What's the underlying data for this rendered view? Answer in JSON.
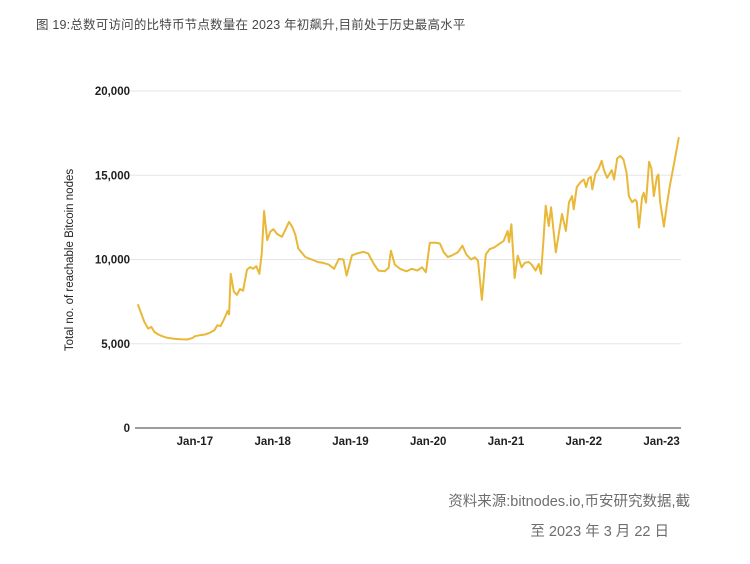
{
  "figure": {
    "title": "图 19:总数可访问的比特币节点数量在 2023 年初飙升,目前处于历史最高水平"
  },
  "source": {
    "line1": "资料来源:bitnodes.io,币安研究数据,截",
    "line2": "至 2023 年 3 月 22 日"
  },
  "chart_data": {
    "type": "line",
    "title": "",
    "xlabel": "",
    "ylabel": "Total no. of reachable Bitcoin nodes",
    "ylim": [
      0,
      20000
    ],
    "xlim": [
      2016.23,
      2023.25
    ],
    "grid": true,
    "legend_position": "none",
    "yticks": [
      0,
      5000,
      10000,
      15000,
      20000
    ],
    "ytick_labels": [
      "0",
      "5,000",
      "10,000",
      "15,000",
      "20,000"
    ],
    "xtick_positions": [
      2017,
      2018,
      2019,
      2020,
      2021,
      2022,
      2023
    ],
    "xtick_labels": [
      "Jan-17",
      "Jan-18",
      "Jan-19",
      "Jan-20",
      "Jan-21",
      "Jan-22",
      "Jan-23"
    ],
    "colors": {
      "line": "#E9B838",
      "grid": "#E5E5E5",
      "axis": "#9C9C9C",
      "tick_text": "#1F1F1F",
      "axis_title_text": "#222222"
    },
    "series": [
      {
        "name": "Total no. of reachable Bitcoin nodes",
        "points": [
          [
            2016.27,
            7300
          ],
          [
            2016.31,
            6800
          ],
          [
            2016.35,
            6300
          ],
          [
            2016.4,
            5900
          ],
          [
            2016.44,
            6000
          ],
          [
            2016.48,
            5700
          ],
          [
            2016.53,
            5550
          ],
          [
            2016.58,
            5450
          ],
          [
            2016.65,
            5350
          ],
          [
            2016.73,
            5300
          ],
          [
            2016.81,
            5270
          ],
          [
            2016.9,
            5250
          ],
          [
            2016.97,
            5350
          ],
          [
            2017.0,
            5450
          ],
          [
            2017.06,
            5500
          ],
          [
            2017.13,
            5550
          ],
          [
            2017.19,
            5650
          ],
          [
            2017.25,
            5800
          ],
          [
            2017.29,
            6100
          ],
          [
            2017.33,
            6050
          ],
          [
            2017.38,
            6500
          ],
          [
            2017.42,
            6950
          ],
          [
            2017.44,
            6750
          ],
          [
            2017.46,
            9150
          ],
          [
            2017.5,
            8100
          ],
          [
            2017.54,
            7900
          ],
          [
            2017.58,
            8250
          ],
          [
            2017.62,
            8150
          ],
          [
            2017.67,
            9400
          ],
          [
            2017.71,
            9550
          ],
          [
            2017.75,
            9450
          ],
          [
            2017.79,
            9600
          ],
          [
            2017.83,
            9150
          ],
          [
            2017.86,
            10400
          ],
          [
            2017.89,
            12880
          ],
          [
            2017.93,
            11150
          ],
          [
            2017.97,
            11650
          ],
          [
            2018.01,
            11800
          ],
          [
            2018.06,
            11500
          ],
          [
            2018.12,
            11350
          ],
          [
            2018.21,
            12230
          ],
          [
            2018.25,
            11950
          ],
          [
            2018.29,
            11500
          ],
          [
            2018.33,
            10650
          ],
          [
            2018.42,
            10150
          ],
          [
            2018.5,
            10000
          ],
          [
            2018.58,
            9850
          ],
          [
            2018.65,
            9800
          ],
          [
            2018.72,
            9700
          ],
          [
            2018.79,
            9450
          ],
          [
            2018.85,
            10030
          ],
          [
            2018.91,
            10000
          ],
          [
            2018.95,
            9045
          ],
          [
            2019.02,
            10250
          ],
          [
            2019.1,
            10380
          ],
          [
            2019.17,
            10450
          ],
          [
            2019.23,
            10350
          ],
          [
            2019.3,
            9735
          ],
          [
            2019.36,
            9340
          ],
          [
            2019.44,
            9300
          ],
          [
            2019.49,
            9500
          ],
          [
            2019.52,
            10520
          ],
          [
            2019.57,
            9700
          ],
          [
            2019.64,
            9440
          ],
          [
            2019.72,
            9300
          ],
          [
            2019.79,
            9450
          ],
          [
            2019.86,
            9350
          ],
          [
            2019.92,
            9540
          ],
          [
            2019.97,
            9245
          ],
          [
            2020.02,
            10985
          ],
          [
            2020.08,
            11000
          ],
          [
            2020.15,
            10950
          ],
          [
            2020.2,
            10425
          ],
          [
            2020.25,
            10150
          ],
          [
            2020.31,
            10250
          ],
          [
            2020.38,
            10430
          ],
          [
            2020.44,
            10820
          ],
          [
            2020.49,
            10300
          ],
          [
            2020.55,
            10000
          ],
          [
            2020.6,
            10130
          ],
          [
            2020.64,
            9930
          ],
          [
            2020.69,
            7600
          ],
          [
            2020.74,
            10300
          ],
          [
            2020.79,
            10620
          ],
          [
            2020.85,
            10720
          ],
          [
            2020.91,
            10915
          ],
          [
            2020.97,
            11110
          ],
          [
            2021.02,
            11700
          ],
          [
            2021.04,
            11030
          ],
          [
            2021.07,
            12095
          ],
          [
            2021.11,
            8900
          ],
          [
            2021.15,
            10230
          ],
          [
            2021.2,
            9540
          ],
          [
            2021.24,
            9800
          ],
          [
            2021.29,
            9850
          ],
          [
            2021.33,
            9700
          ],
          [
            2021.38,
            9340
          ],
          [
            2021.42,
            9730
          ],
          [
            2021.45,
            9150
          ],
          [
            2021.48,
            11000
          ],
          [
            2021.51,
            13200
          ],
          [
            2021.55,
            11990
          ],
          [
            2021.58,
            13100
          ],
          [
            2021.64,
            10420
          ],
          [
            2021.72,
            12700
          ],
          [
            2021.77,
            11700
          ],
          [
            2021.81,
            13400
          ],
          [
            2021.85,
            13765
          ],
          [
            2021.87,
            12980
          ],
          [
            2021.91,
            14300
          ],
          [
            2021.96,
            14600
          ],
          [
            2022.0,
            14750
          ],
          [
            2022.03,
            14300
          ],
          [
            2022.06,
            14800
          ],
          [
            2022.09,
            14900
          ],
          [
            2022.11,
            14160
          ],
          [
            2022.15,
            15100
          ],
          [
            2022.19,
            15380
          ],
          [
            2022.23,
            15850
          ],
          [
            2022.26,
            15300
          ],
          [
            2022.3,
            14850
          ],
          [
            2022.36,
            15300
          ],
          [
            2022.39,
            14750
          ],
          [
            2022.43,
            16000
          ],
          [
            2022.47,
            16150
          ],
          [
            2022.51,
            15950
          ],
          [
            2022.55,
            15140
          ],
          [
            2022.58,
            13765
          ],
          [
            2022.62,
            13400
          ],
          [
            2022.66,
            13550
          ],
          [
            2022.68,
            13450
          ],
          [
            2022.71,
            11900
          ],
          [
            2022.75,
            13700
          ],
          [
            2022.77,
            13960
          ],
          [
            2022.8,
            13375
          ],
          [
            2022.84,
            15800
          ],
          [
            2022.87,
            15400
          ],
          [
            2022.9,
            13765
          ],
          [
            2022.94,
            14900
          ],
          [
            2022.96,
            15045
          ],
          [
            2022.98,
            13470
          ],
          [
            2023.03,
            11950
          ],
          [
            2023.07,
            13300
          ],
          [
            2023.11,
            14455
          ],
          [
            2023.17,
            15930
          ],
          [
            2023.22,
            17210
          ]
        ]
      }
    ]
  }
}
